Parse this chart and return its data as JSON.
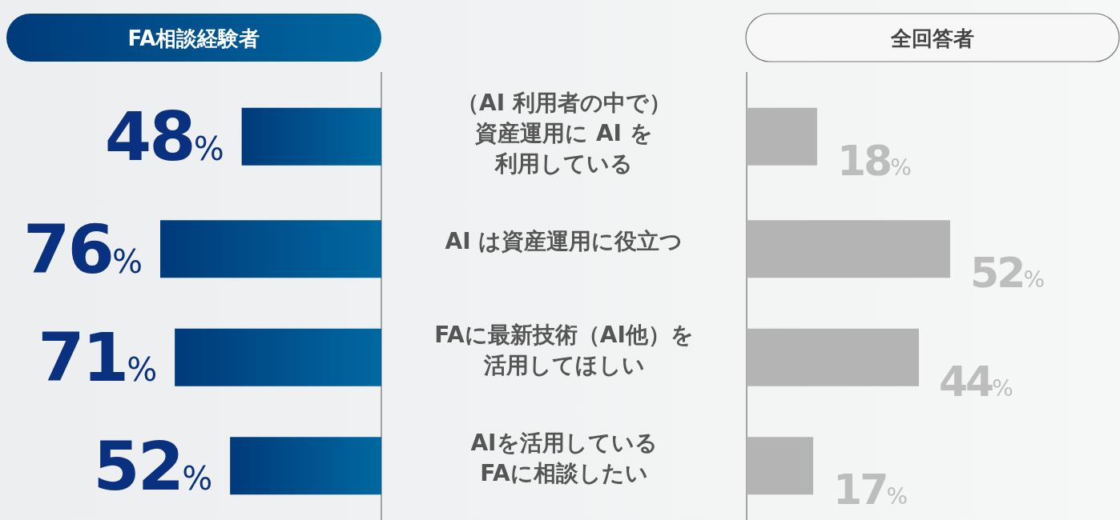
{
  "chart_data": [
    {
      "type": "bar",
      "orientation": "horizontal",
      "title": "FA相談経験者",
      "color": "#003a7a",
      "categories": [
        "（AI 利用者の中で）資産運用に AI を利用している",
        "AI は資産運用に役立つ",
        "FAに最新技術（AI他）を活用してほしい",
        "AIを活用しているFAに相談したい"
      ],
      "values": [
        48,
        76,
        71,
        52
      ],
      "value_labels": [
        "48%",
        "76%",
        "71%",
        "52%"
      ]
    },
    {
      "type": "bar",
      "orientation": "horizontal",
      "title": "全回答者",
      "color": "#b4b4b4",
      "categories": [
        null,
        null,
        null,
        null
      ],
      "values": [
        18,
        52,
        44,
        17
      ],
      "value_labels": [
        "18%",
        "52%",
        "44%",
        "17%"
      ]
    }
  ]
}
